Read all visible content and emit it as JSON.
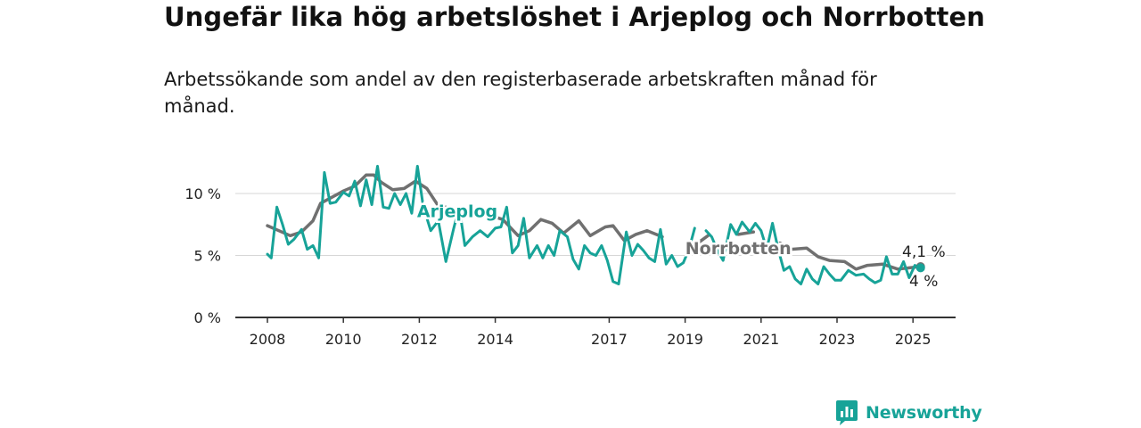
{
  "title": "Ungefär lika hög arbetslöshet i Arjeplog och Norrbotten",
  "subtitle": "Arbetssökande som andel av den registerbaserade arbetskraften månad för månad.",
  "brand": {
    "name": "Newsworthy",
    "color": "#17a398"
  },
  "chart_data": {
    "type": "line",
    "title": "",
    "xlabel": "",
    "ylabel": "",
    "x_ticks": [
      "2008",
      "2010",
      "2012",
      "2014",
      "2017",
      "2019",
      "2021",
      "2023",
      "2025"
    ],
    "x_tick_values": [
      2008,
      2010,
      2012,
      2014,
      2017,
      2019,
      2021,
      2023,
      2025
    ],
    "y_ticks": [
      0,
      5,
      10
    ],
    "y_tick_labels": [
      "0 %",
      "5 %",
      "10 %"
    ],
    "ylim": [
      0,
      12.5
    ],
    "xlim": [
      2007.6,
      2026.0
    ],
    "grid": "horizontal",
    "series": [
      {
        "name": "Norrbotten",
        "color": "#707070",
        "end_label": "4,1 %",
        "points": [
          [
            2008.0,
            7.4
          ],
          [
            2008.3,
            7.0
          ],
          [
            2008.6,
            6.6
          ],
          [
            2008.9,
            6.9
          ],
          [
            2009.2,
            7.8
          ],
          [
            2009.4,
            9.2
          ],
          [
            2009.7,
            9.7
          ],
          [
            2010.0,
            10.2
          ],
          [
            2010.3,
            10.6
          ],
          [
            2010.6,
            11.5
          ],
          [
            2010.8,
            11.5
          ],
          [
            2011.0,
            10.9
          ],
          [
            2011.3,
            10.3
          ],
          [
            2011.6,
            10.4
          ],
          [
            2011.9,
            11.0
          ],
          [
            2012.2,
            10.4
          ],
          [
            2012.5,
            9.0
          ],
          [
            2012.7,
            8.9
          ],
          [
            2013.0,
            10.2
          ],
          [
            2013.3,
            9.6
          ],
          [
            2013.6,
            8.6
          ],
          [
            2013.9,
            8.2
          ],
          [
            2014.2,
            7.9
          ],
          [
            2014.6,
            6.6
          ],
          [
            2014.9,
            7.0
          ],
          [
            2015.2,
            7.9
          ],
          [
            2015.5,
            7.6
          ],
          [
            2015.8,
            6.8
          ],
          [
            2016.2,
            7.8
          ],
          [
            2016.5,
            6.6
          ],
          [
            2016.9,
            7.3
          ],
          [
            2017.1,
            7.4
          ],
          [
            2017.4,
            6.2
          ],
          [
            2017.7,
            6.7
          ],
          [
            2018.0,
            7.0
          ],
          [
            2018.4,
            6.5
          ],
          [
            2018.8,
            6.7
          ],
          [
            2019.2,
            5.7
          ],
          [
            2019.6,
            6.6
          ],
          [
            2020.0,
            7.0
          ],
          [
            2020.4,
            6.7
          ],
          [
            2020.8,
            6.9
          ],
          [
            2021.2,
            6.8
          ],
          [
            2021.5,
            6.0
          ],
          [
            2021.8,
            5.5
          ],
          [
            2022.2,
            5.6
          ],
          [
            2022.5,
            4.9
          ],
          [
            2022.8,
            4.6
          ],
          [
            2023.2,
            4.5
          ],
          [
            2023.5,
            3.9
          ],
          [
            2023.8,
            4.2
          ],
          [
            2024.2,
            4.3
          ],
          [
            2024.6,
            3.9
          ],
          [
            2024.9,
            4.0
          ],
          [
            2025.2,
            4.1
          ]
        ],
        "gaps": [
          [
            2012.75,
            2013.35
          ],
          [
            2018.6,
            2019.15
          ],
          [
            2019.8,
            2020.35
          ],
          [
            2021.15,
            2021.35
          ]
        ]
      },
      {
        "name": "Arjeplog",
        "color": "#17a398",
        "end_label": "4 %",
        "points": [
          [
            2008.0,
            5.1
          ],
          [
            2008.1,
            4.8
          ],
          [
            2008.25,
            8.9
          ],
          [
            2008.4,
            7.5
          ],
          [
            2008.55,
            5.9
          ],
          [
            2008.7,
            6.3
          ],
          [
            2008.9,
            7.1
          ],
          [
            2009.05,
            5.5
          ],
          [
            2009.2,
            5.8
          ],
          [
            2009.35,
            4.8
          ],
          [
            2009.5,
            11.7
          ],
          [
            2009.65,
            9.2
          ],
          [
            2009.8,
            9.3
          ],
          [
            2010.0,
            10.1
          ],
          [
            2010.15,
            9.8
          ],
          [
            2010.3,
            11.0
          ],
          [
            2010.45,
            9.0
          ],
          [
            2010.6,
            11.1
          ],
          [
            2010.75,
            9.1
          ],
          [
            2010.9,
            12.2
          ],
          [
            2011.05,
            8.9
          ],
          [
            2011.2,
            8.8
          ],
          [
            2011.35,
            10.0
          ],
          [
            2011.5,
            9.1
          ],
          [
            2011.65,
            10.0
          ],
          [
            2011.8,
            8.4
          ],
          [
            2011.95,
            12.2
          ],
          [
            2012.1,
            9.0
          ],
          [
            2012.3,
            7.0
          ],
          [
            2012.5,
            7.8
          ],
          [
            2012.7,
            4.5
          ],
          [
            2012.9,
            7.1
          ],
          [
            2013.05,
            8.9
          ],
          [
            2013.2,
            5.8
          ],
          [
            2013.4,
            6.5
          ],
          [
            2013.6,
            7.0
          ],
          [
            2013.8,
            6.5
          ],
          [
            2014.0,
            7.2
          ],
          [
            2014.15,
            7.3
          ],
          [
            2014.3,
            8.9
          ],
          [
            2014.45,
            5.2
          ],
          [
            2014.6,
            5.8
          ],
          [
            2014.75,
            8.0
          ],
          [
            2014.9,
            4.8
          ],
          [
            2015.1,
            5.8
          ],
          [
            2015.25,
            4.8
          ],
          [
            2015.4,
            5.8
          ],
          [
            2015.55,
            5.0
          ],
          [
            2015.7,
            7.0
          ],
          [
            2015.9,
            6.5
          ],
          [
            2016.05,
            4.7
          ],
          [
            2016.2,
            3.9
          ],
          [
            2016.35,
            5.8
          ],
          [
            2016.5,
            5.2
          ],
          [
            2016.65,
            5.0
          ],
          [
            2016.8,
            5.8
          ],
          [
            2016.95,
            4.6
          ],
          [
            2017.1,
            2.9
          ],
          [
            2017.25,
            2.7
          ],
          [
            2017.45,
            6.9
          ],
          [
            2017.6,
            5.0
          ],
          [
            2017.75,
            5.9
          ],
          [
            2017.9,
            5.4
          ],
          [
            2018.05,
            4.8
          ],
          [
            2018.2,
            4.5
          ],
          [
            2018.35,
            7.1
          ],
          [
            2018.5,
            4.3
          ],
          [
            2018.65,
            5.0
          ],
          [
            2018.8,
            4.1
          ],
          [
            2018.95,
            4.4
          ],
          [
            2019.1,
            5.5
          ],
          [
            2019.25,
            7.2
          ],
          [
            2019.4,
            6.6
          ],
          [
            2019.55,
            7.0
          ],
          [
            2019.7,
            6.5
          ],
          [
            2019.85,
            5.4
          ],
          [
            2020.0,
            4.6
          ],
          [
            2020.2,
            7.5
          ],
          [
            2020.35,
            6.7
          ],
          [
            2020.5,
            7.7
          ],
          [
            2020.7,
            6.9
          ],
          [
            2020.85,
            7.6
          ],
          [
            2021.0,
            7.0
          ],
          [
            2021.15,
            5.5
          ],
          [
            2021.3,
            7.6
          ],
          [
            2021.45,
            5.5
          ],
          [
            2021.6,
            3.8
          ],
          [
            2021.75,
            4.1
          ],
          [
            2021.9,
            3.1
          ],
          [
            2022.05,
            2.7
          ],
          [
            2022.2,
            3.9
          ],
          [
            2022.35,
            3.1
          ],
          [
            2022.5,
            2.7
          ],
          [
            2022.65,
            4.1
          ],
          [
            2022.8,
            3.5
          ],
          [
            2022.95,
            3.0
          ],
          [
            2023.1,
            3.0
          ],
          [
            2023.3,
            3.8
          ],
          [
            2023.5,
            3.4
          ],
          [
            2023.7,
            3.5
          ],
          [
            2023.85,
            3.1
          ],
          [
            2024.0,
            2.8
          ],
          [
            2024.15,
            3.0
          ],
          [
            2024.3,
            4.9
          ],
          [
            2024.45,
            3.5
          ],
          [
            2024.6,
            3.5
          ],
          [
            2024.75,
            4.5
          ],
          [
            2024.9,
            3.2
          ],
          [
            2025.05,
            4.2
          ],
          [
            2025.2,
            4.0
          ]
        ],
        "gaps": [
          [
            2019.3,
            2019.45
          ]
        ]
      }
    ],
    "annotations": [
      {
        "text": "Arjeplog",
        "series": "Arjeplog",
        "x": 2013.0,
        "y": 8.6
      },
      {
        "text": "Norrbotten",
        "series": "Norrbotten",
        "x": 2020.4,
        "y": 5.6
      }
    ],
    "legend": "none"
  }
}
